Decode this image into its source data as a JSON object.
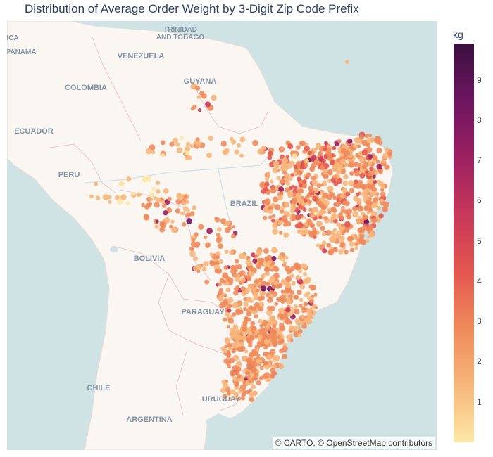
{
  "title": "Distribution of Average Order Weight by 3-Digit Zip Code Prefix",
  "attribution": "© CARTO, © OpenStreetMap contributors",
  "colorbar": {
    "unit": "kg",
    "min": 0,
    "max": 9.9,
    "ticks": [
      "1",
      "2",
      "3",
      "4",
      "5",
      "6",
      "7",
      "8",
      "9"
    ],
    "colors": [
      "#fde8a5",
      "#f7b67b",
      "#ef8a5b",
      "#e4564f",
      "#c8385a",
      "#9c1f61",
      "#6e1561",
      "#3b0f3f"
    ]
  },
  "map": {
    "labels": [
      "TRINIDAD",
      "AND TOBAGO",
      "VENEZUELA",
      "ICA",
      "PANAMA",
      "COLOMBIA",
      "GUYANA",
      "ECUADOR",
      "PERU",
      "BRAZIL",
      "BOLIVIA",
      "PARAGUAY",
      "CHILE",
      "URUGUAY",
      "ARGENTINA"
    ]
  },
  "chart_data": {
    "type": "scatter-map",
    "title": "Distribution of Average Order Weight by 3-Digit Zip Code Prefix",
    "color_variable": "kg",
    "color_range": [
      0,
      9.9
    ],
    "regions": [
      {
        "lon": -40,
        "lat": -8,
        "value": 2.8
      },
      {
        "lon": -44,
        "lat": -3,
        "value": 3.5
      },
      {
        "lon": -48,
        "lat": -1,
        "value": 4.5
      },
      {
        "lon": -45,
        "lat": -20,
        "value": 3.0
      },
      {
        "lon": -51,
        "lat": -25,
        "value": 3.0
      },
      {
        "lon": -60,
        "lat": -10,
        "value": 2.5
      },
      {
        "lon": -66,
        "lat": -8,
        "value": 1.5
      },
      {
        "lon": -72,
        "lat": -8,
        "value": 1.0
      }
    ]
  }
}
